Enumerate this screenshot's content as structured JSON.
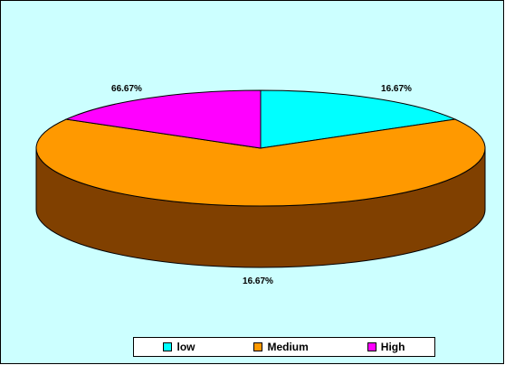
{
  "chart_data": {
    "type": "pie",
    "style": "3d",
    "title": "",
    "series": [
      {
        "name": "low",
        "value": 16.67,
        "label": "16.67%",
        "color": "#00ffff"
      },
      {
        "name": "Medium",
        "value": 66.67,
        "label": "66.67%",
        "color": "#ff9900"
      },
      {
        "name": "High",
        "value": 16.67,
        "label": "16.67%",
        "color": "#ff00ff"
      }
    ],
    "legend_position": "bottom",
    "background_color": "#ccffff",
    "side_color": "#804000"
  }
}
